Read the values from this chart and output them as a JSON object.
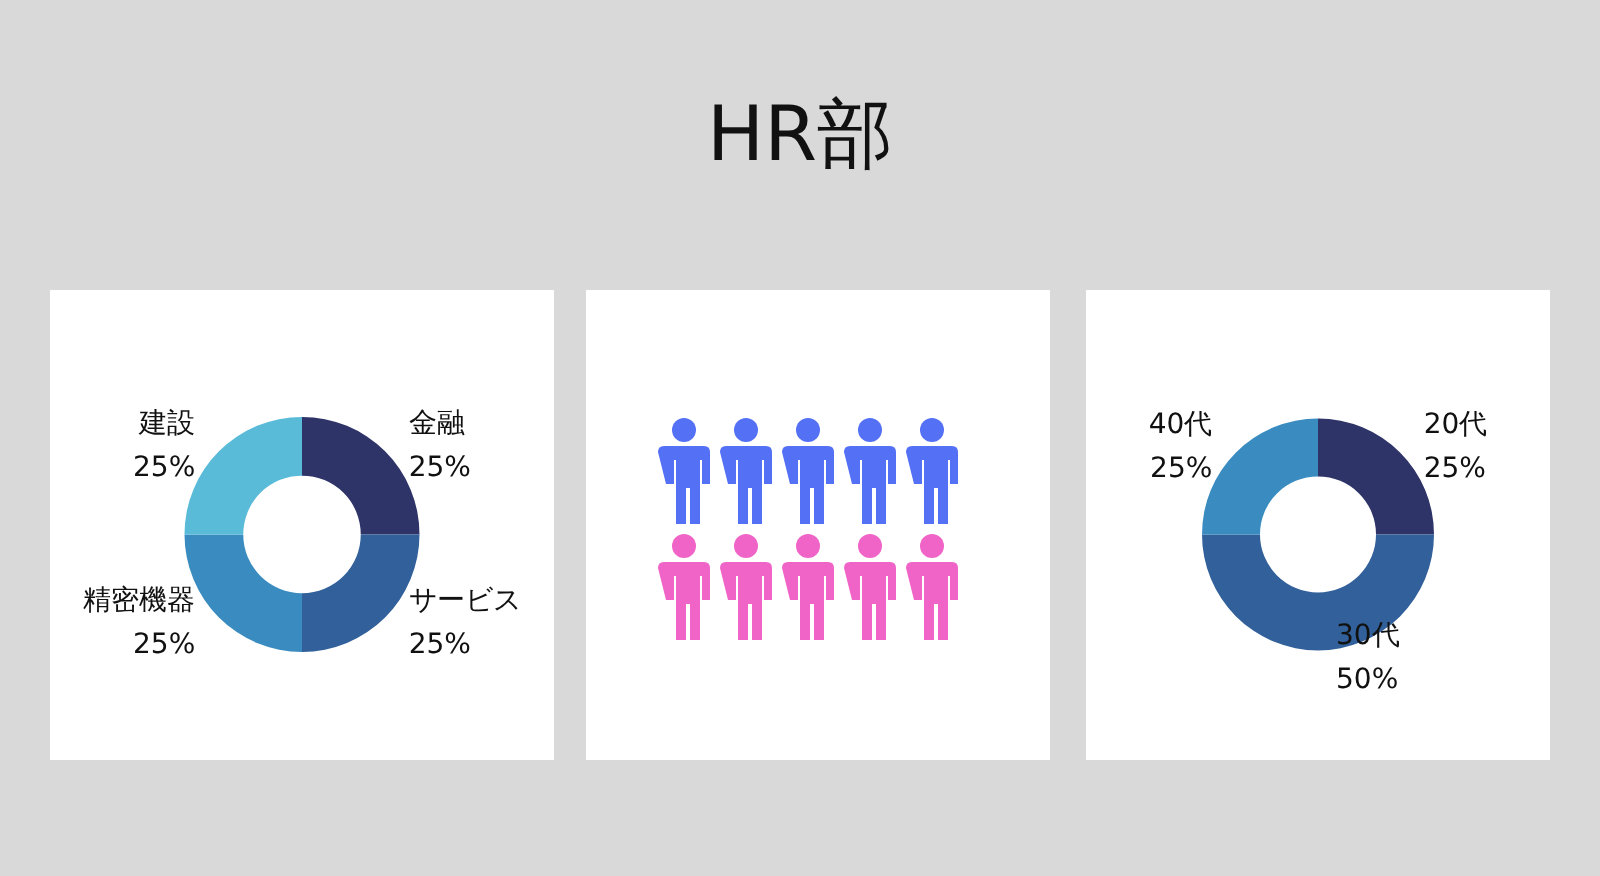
{
  "chart_data": [
    {
      "type": "donut",
      "title": "HR部",
      "categories": [
        "金融",
        "サービス",
        "精密機器",
        "建設"
      ],
      "values": [
        25,
        25,
        25,
        25
      ],
      "colors": [
        "#2e3368",
        "#31609a",
        "#3a8cc0",
        "#5abbd9"
      ],
      "value_labels": [
        "25%",
        "25%",
        "25%",
        "25%"
      ]
    },
    {
      "type": "donut",
      "categories": [
        "20代",
        "30代",
        "40代"
      ],
      "values": [
        25,
        50,
        25
      ],
      "colors": [
        "#2e3368",
        "#31609a",
        "#3a8cc0"
      ],
      "value_labels": [
        "25%",
        "50%",
        "25%"
      ]
    }
  ]
}
